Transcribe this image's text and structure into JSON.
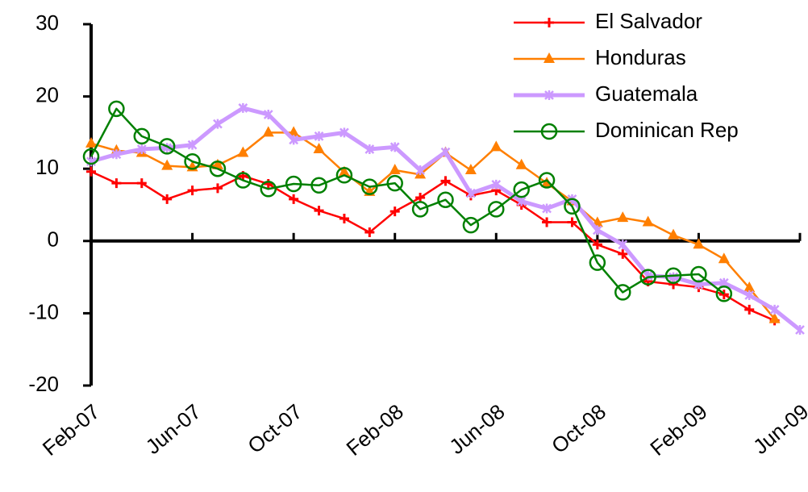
{
  "chart_data": {
    "type": "line",
    "categories": [
      "Feb-07",
      null,
      null,
      null,
      "Jun-07",
      null,
      null,
      null,
      "Oct-07",
      null,
      null,
      null,
      "Feb-08",
      null,
      null,
      null,
      "Jun-08",
      null,
      null,
      null,
      "Oct-08",
      null,
      null,
      null,
      "Feb-09",
      null,
      null,
      null,
      "Jun-09"
    ],
    "series": [
      {
        "name": "El Salvador",
        "color": "#ff0000",
        "marker": "plus",
        "values": [
          9.6,
          8,
          8,
          5.8,
          7,
          7.3,
          9,
          7.9,
          5.8,
          4.2,
          3.1,
          1.2,
          4.1,
          6,
          8.3,
          6.3,
          7,
          5,
          2.6,
          2.6,
          -0.5,
          -1.8,
          -5.6,
          -6,
          -6.4,
          -7.4,
          -9.5,
          -11,
          null
        ]
      },
      {
        "name": "Honduras",
        "color": "#ff7f00",
        "marker": "triangle",
        "values": [
          13.5,
          12.5,
          12.2,
          10.4,
          10.2,
          10.5,
          12.2,
          15,
          15,
          12.7,
          9.5,
          6.8,
          9.8,
          9.2,
          12.2,
          9.8,
          13,
          10.5,
          8,
          5.5,
          2.5,
          3.2,
          2.6,
          0.8,
          -0.5,
          -2.5,
          -6.5,
          -10.8,
          null
        ]
      },
      {
        "name": "Guatemala",
        "color": "#cc99ff",
        "marker": "star",
        "values": [
          11,
          12,
          12.7,
          12.9,
          13.3,
          16.2,
          18.4,
          17.5,
          14,
          14.5,
          15,
          12.7,
          13,
          9.8,
          12.3,
          6.6,
          7.8,
          5.5,
          4.5,
          5.8,
          1.5,
          -0.5,
          -4.8,
          -5,
          -6,
          -5.8,
          -7.5,
          -9.5,
          -12.3
        ]
      },
      {
        "name": "Dominican Rep",
        "color": "#008000",
        "marker": "circle",
        "values": [
          11.7,
          18.3,
          14.5,
          13.1,
          11,
          10,
          8.4,
          7.2,
          7.9,
          7.7,
          9.1,
          7.5,
          8,
          4.4,
          5.7,
          2.2,
          4.4,
          7.1,
          8.4,
          4.8,
          -3,
          -7.1,
          -5,
          -4.8,
          -4.6,
          -7.3,
          null,
          null,
          null
        ]
      }
    ],
    "ylim": [
      -20,
      30
    ],
    "yticks": [
      -20,
      -10,
      0,
      10,
      20,
      30
    ],
    "grid": false,
    "legend": "upper right"
  }
}
